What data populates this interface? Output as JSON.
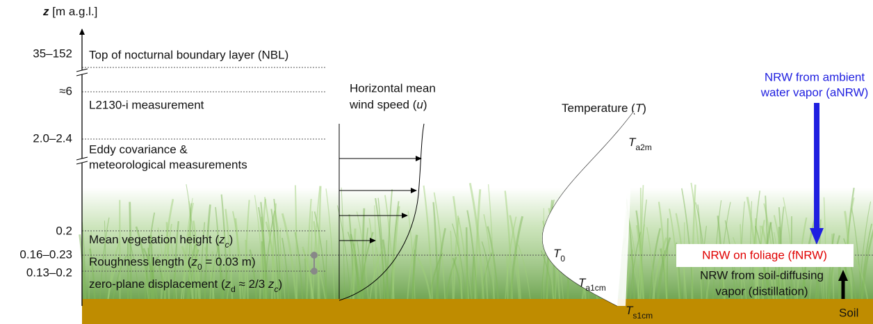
{
  "axis": {
    "label": [
      "z",
      " [m a.g.l.]"
    ],
    "ticks": [
      "35–152",
      "≈6",
      "2.0–2.4",
      "0.2",
      "0.16–0.23",
      "0.13–0.2"
    ]
  },
  "levels": {
    "nbl": "Top of nocturnal boundary layer (NBL)",
    "l2130": "L2130-i measurement",
    "eddy": [
      "Eddy covariance &",
      "meteorological measurements"
    ],
    "veg": [
      "Mean vegetation height (",
      "z",
      "c",
      ")"
    ],
    "rough": [
      "Roughness length (",
      "z",
      "0",
      " = 0.03 m)"
    ],
    "zero": [
      "zero-plane displacement (",
      "z",
      "d",
      " ≈ 2/3 ",
      "z",
      "c",
      ")"
    ]
  },
  "wind": {
    "title": "Horizontal mean",
    "subtitle": [
      "wind speed (",
      "u",
      ")"
    ]
  },
  "temperature": {
    "title": [
      "Temperature (",
      "T",
      ")"
    ],
    "a2m": [
      "T",
      "a2m"
    ],
    "t0": [
      "T",
      "0"
    ],
    "a1cm": [
      "T",
      "a1cm"
    ],
    "s1cm": [
      "T",
      "s1cm"
    ]
  },
  "nrw": {
    "ambient": [
      "NRW from ambient",
      "water vapor (aNRW)"
    ],
    "foliage": "NRW on foliage (fNRW)",
    "soil": [
      "NRW from soil-diffusing",
      "vapor (distillation)"
    ]
  },
  "soil": "Soil"
}
